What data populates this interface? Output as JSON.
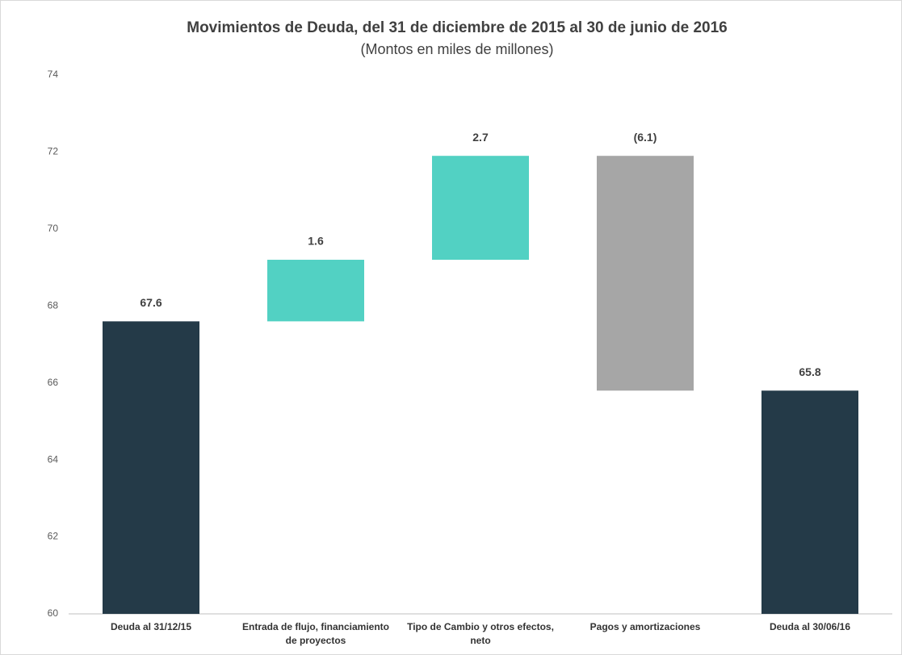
{
  "chart_data": {
    "type": "waterfall",
    "title": "Movimientos de Deuda,  del 31 de diciembre de 2015 al 30 de junio de 2016",
    "subtitle": "(Montos en miles de millones)",
    "categories": [
      "Deuda al 31/12/15",
      "Entrada de flujo, financiamiento de proyectos",
      "Tipo de Cambio y otros efectos, neto",
      "Pagos y amortizaciones",
      "Deuda al 30/06/16"
    ],
    "values": [
      67.6,
      1.6,
      2.7,
      -6.1,
      65.8
    ],
    "value_labels": [
      "67.6",
      "1.6",
      "2.7",
      "(6.1)",
      "65.8"
    ],
    "measure": [
      "absolute",
      "relative",
      "relative",
      "relative",
      "total"
    ],
    "colors": [
      "#243a48",
      "#52d1c3",
      "#52d1c3",
      "#a6a6a6",
      "#243a48"
    ],
    "ylim": [
      60,
      74
    ],
    "yticks": [
      60,
      62,
      64,
      66,
      68,
      70,
      72,
      74
    ],
    "grid": false
  }
}
